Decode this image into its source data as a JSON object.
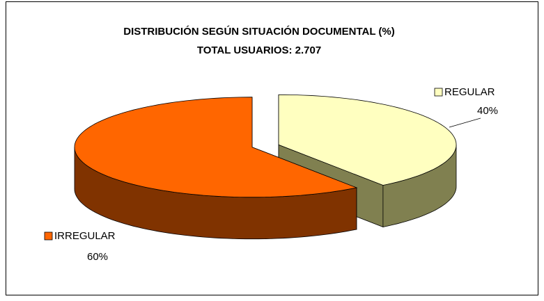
{
  "chart_data": {
    "type": "pie",
    "title": "DISTRIBUCIÓN SEGÚN SITUACIÓN DOCUMENTAL (%)",
    "subtitle": "TOTAL USUARIOS: 2.707",
    "categories": [
      "REGULAR",
      "IRREGULAR"
    ],
    "values": [
      40,
      60
    ],
    "value_labels": [
      "40%",
      "60%"
    ],
    "colors": [
      "#ffffc0",
      "#ff6600"
    ],
    "side_colors": [
      "#808050",
      "#803300"
    ]
  }
}
